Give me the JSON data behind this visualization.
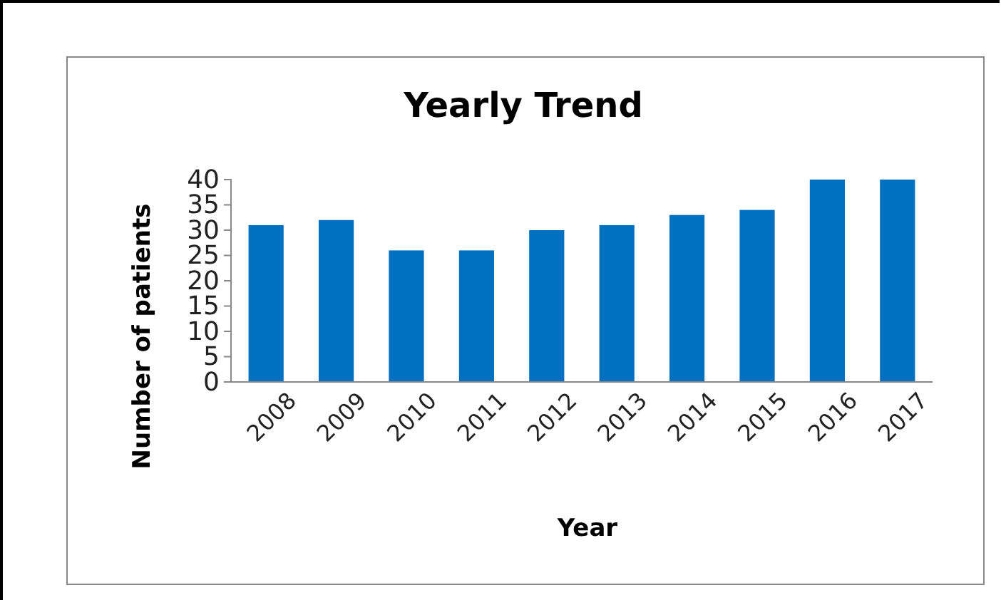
{
  "chart_data": {
    "type": "bar",
    "title": "Yearly Trend",
    "xlabel": "Year",
    "ylabel": "Number of patients",
    "categories": [
      "2008",
      "2009",
      "2010",
      "2011",
      "2012",
      "2013",
      "2014",
      "2015",
      "2016",
      "2017"
    ],
    "values": [
      31,
      32,
      26,
      26,
      30,
      31,
      33,
      34,
      40,
      40
    ],
    "color": "#0070c0",
    "ylim": [
      0,
      40
    ],
    "yticks": [
      0,
      5,
      10,
      15,
      20,
      25,
      30,
      35,
      40
    ],
    "grid": false
  }
}
